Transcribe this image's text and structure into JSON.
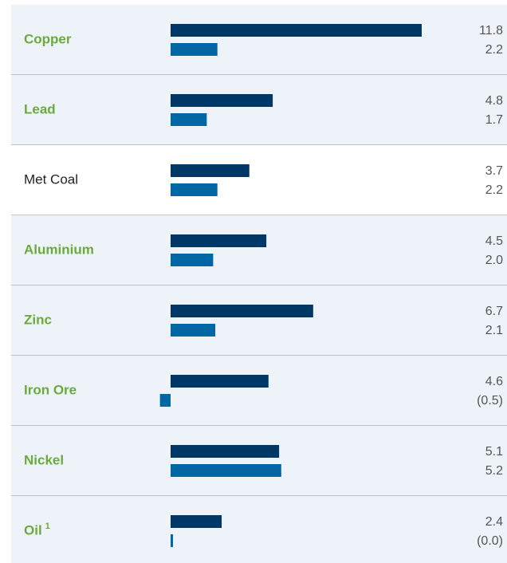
{
  "chart_data": {
    "type": "bar",
    "orientation": "horizontal",
    "categories": [
      "Copper",
      "Lead",
      "Met Coal",
      "Aluminium",
      "Zinc",
      "Iron Ore",
      "Nickel",
      "Oil"
    ],
    "category_colors": [
      "#6aaa3a",
      "#6aaa3a",
      "#222222",
      "#6aaa3a",
      "#6aaa3a",
      "#6aaa3a",
      "#6aaa3a",
      "#6aaa3a"
    ],
    "row_backgrounds": [
      "#eef3fa",
      "#eef3fa",
      "#ffffff",
      "#eef3fa",
      "#eef3fa",
      "#eef3fa",
      "#eef3fa",
      "#eef3fa"
    ],
    "annotations": [
      {
        "category": "Oil",
        "text": "1"
      }
    ],
    "series": [
      {
        "color": "#003865",
        "values": [
          11.8,
          4.8,
          3.7,
          4.5,
          6.7,
          4.6,
          5.1,
          2.4
        ],
        "value_labels": [
          "11.8",
          "4.8",
          "3.7",
          "4.5",
          "6.7",
          "4.6",
          "5.1",
          "2.4"
        ]
      },
      {
        "color": "#0067a5",
        "values": [
          2.2,
          1.7,
          2.2,
          2.0,
          2.1,
          -0.5,
          5.2,
          0.0
        ],
        "value_labels": [
          "2.2",
          "1.7",
          "2.2",
          "2.0",
          "2.1",
          "(0.5)",
          "5.2",
          "(0.0)"
        ]
      }
    ]
  }
}
